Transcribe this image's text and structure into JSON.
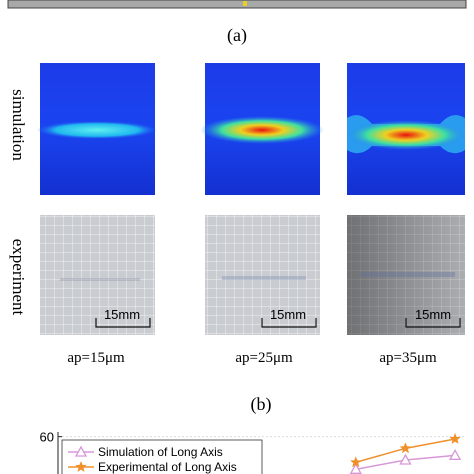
{
  "figure": {
    "top_label": "(a)",
    "row_labels": [
      "simulation",
      "experiment"
    ],
    "scale_bars": [
      "15mm",
      "15mm",
      "15mm"
    ],
    "captions": [
      "ap=15μm",
      "ap=25μm",
      "ap=35μm"
    ],
    "bottom_label": "(b)"
  },
  "chart_data": {
    "type": "line",
    "x": [
      6,
      7,
      8
    ],
    "xlim": [
      0,
      8.2
    ],
    "ylim": [
      52,
      61
    ],
    "yticks": [
      60
    ],
    "series": [
      {
        "name": "Simulation of Long Axis",
        "color": "#d898d8",
        "marker": "triangle",
        "values": [
          53,
          55,
          56
        ]
      },
      {
        "name": "Experimental of Long Axis",
        "color": "#f0902a",
        "marker": "star",
        "values": [
          54.5,
          57.5,
          59.5
        ]
      }
    ]
  }
}
